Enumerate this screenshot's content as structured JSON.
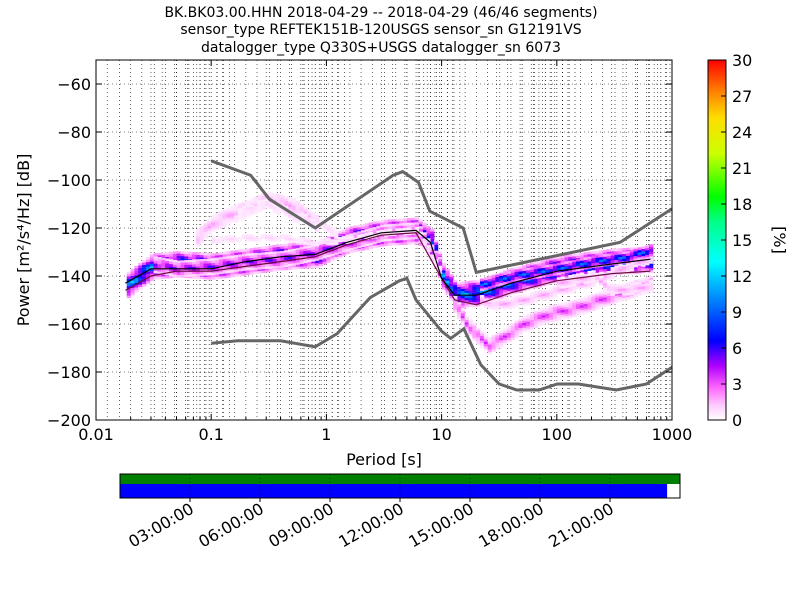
{
  "chart_data": {
    "type": "heatmap",
    "title_lines": [
      "BK.BK03.00.HHN   2018-04-29 -- 2018-04-29  (46/46 segments)",
      "sensor_type REFTEK151B-120USGS sensor_sn G12191VS",
      "datalogger_type Q330S+USGS datalogger_sn 6073"
    ],
    "xlabel": "Period [s]",
    "ylabel": "Power [m²/s⁴/Hz] [dB]",
    "xscale": "log",
    "xlim": [
      0.01,
      1000
    ],
    "ylim": [
      -200,
      -50
    ],
    "x_ticks": [
      {
        "value": 0.01,
        "label": "0.01"
      },
      {
        "value": 0.1,
        "label": "0.1"
      },
      {
        "value": 1,
        "label": "1"
      },
      {
        "value": 10,
        "label": "10"
      },
      {
        "value": 100,
        "label": "100"
      },
      {
        "value": 1000,
        "label": "1000"
      }
    ],
    "y_ticks": [
      {
        "value": -60,
        "label": "−60"
      },
      {
        "value": -80,
        "label": "−80"
      },
      {
        "value": -100,
        "label": "−100"
      },
      {
        "value": -120,
        "label": "−120"
      },
      {
        "value": -140,
        "label": "−140"
      },
      {
        "value": -160,
        "label": "−160"
      },
      {
        "value": -180,
        "label": "−180"
      },
      {
        "value": -200,
        "label": "−200"
      }
    ],
    "grid": "dotted vertical at period bins, dotted horizontal at y ticks",
    "colorbar": {
      "label": "[%]",
      "range": [
        0,
        30
      ],
      "ticks": [
        {
          "value": 0,
          "label": "0"
        },
        {
          "value": 3,
          "label": "3"
        },
        {
          "value": 6,
          "label": "6"
        },
        {
          "value": 9,
          "label": "9"
        },
        {
          "value": 12,
          "label": "12"
        },
        {
          "value": 15,
          "label": "15"
        },
        {
          "value": 18,
          "label": "18"
        },
        {
          "value": 21,
          "label": "21"
        },
        {
          "value": 24,
          "label": "24"
        },
        {
          "value": 27,
          "label": "27"
        },
        {
          "value": 30,
          "label": "30"
        }
      ],
      "colormap": "pqlx: white-magenta-purple-blue-cyan-green-yellow-orange-red"
    },
    "noise_models": {
      "high": [
        [
          0.1,
          -92
        ],
        [
          0.22,
          -98
        ],
        [
          0.32,
          -108
        ],
        [
          0.8,
          -120
        ],
        [
          3.8,
          -98
        ],
        [
          4.6,
          -96.5
        ],
        [
          6.3,
          -101
        ],
        [
          7.9,
          -113
        ],
        [
          15.4,
          -120
        ],
        [
          20,
          -138.5
        ],
        [
          354,
          -126
        ],
        [
          1000,
          -112
        ]
      ],
      "low": [
        [
          0.1,
          -168
        ],
        [
          0.17,
          -167
        ],
        [
          0.4,
          -167
        ],
        [
          0.8,
          -169.5
        ],
        [
          1.24,
          -164
        ],
        [
          2.4,
          -149
        ],
        [
          4.3,
          -142
        ],
        [
          5,
          -141
        ],
        [
          6,
          -150
        ],
        [
          10,
          -163
        ],
        [
          12,
          -166
        ],
        [
          15.6,
          -162
        ],
        [
          21.9,
          -177
        ],
        [
          31.6,
          -185
        ],
        [
          45,
          -187.5
        ],
        [
          70,
          -187.5
        ],
        [
          101,
          -185
        ],
        [
          154,
          -185
        ],
        [
          328,
          -187.5
        ],
        [
          600,
          -185
        ],
        [
          1000,
          -178
        ]
      ]
    },
    "density_bands": [
      {
        "x": [
          0.018,
          0.03,
          0.05,
          0.1,
          0.2,
          0.4,
          0.8,
          1.5,
          3,
          6,
          8,
          10,
          13,
          20,
          40,
          100,
          300,
          650
        ],
        "y": [
          -144,
          -136,
          -135,
          -136,
          -134,
          -132,
          -131,
          -125,
          -122,
          -121,
          -126,
          -140,
          -148,
          -147,
          -142,
          -137,
          -134,
          -133
        ],
        "half_width": 5,
        "percent": 12
      },
      {
        "x": [
          0.03,
          0.05,
          0.1,
          0.2,
          0.4,
          0.8,
          1.5,
          3,
          6,
          10
        ],
        "y": [
          -135,
          -137,
          -136,
          -134,
          -133,
          -130,
          -126,
          -122,
          -121,
          -138
        ],
        "half_width": 3,
        "percent": 6
      },
      {
        "x": [
          0.07,
          0.1,
          0.15,
          0.22,
          0.3,
          0.5,
          0.8
        ],
        "y": [
          -125,
          -118,
          -114,
          -111,
          -108,
          -111,
          -118
        ],
        "half_width": 4,
        "percent": 2
      },
      {
        "x": [
          0.15,
          0.2,
          0.3,
          0.5,
          0.8,
          1.2
        ],
        "y": [
          -116,
          -112,
          -110,
          -115,
          -118,
          -122
        ],
        "half_width": 3,
        "percent": 1
      },
      {
        "x": [
          0.1,
          0.2,
          0.4,
          0.8,
          1.5,
          3,
          6,
          10
        ],
        "y": [
          -125,
          -124,
          -124,
          -126,
          -125,
          -122,
          -121,
          -140
        ],
        "half_width": 2,
        "percent": 1
      },
      {
        "x": [
          12,
          16,
          20,
          25,
          32,
          50,
          80,
          150,
          300,
          650
        ],
        "y": [
          -150,
          -160,
          -165,
          -169,
          -166,
          -160,
          -156,
          -153,
          -148,
          -143
        ],
        "half_width": 3,
        "percent": 4
      },
      {
        "x": [
          20,
          30,
          50,
          100,
          200,
          400,
          650
        ],
        "y": [
          -150,
          -152,
          -150,
          -146,
          -142,
          -136,
          -132
        ],
        "half_width": 2,
        "percent": 2
      },
      {
        "x": [
          20,
          40,
          100,
          200,
          400,
          650
        ],
        "y": [
          -144,
          -140,
          -137,
          -134,
          -132,
          -129
        ],
        "half_width": 2,
        "percent": 10
      },
      {
        "x": [
          100,
          200,
          300,
          500,
          650
        ],
        "y": [
          -143,
          -140,
          -146,
          -145,
          -144
        ],
        "half_width": 2,
        "percent": 2
      }
    ],
    "mode_line": {
      "x": [
        0.018,
        0.03,
        0.05,
        0.1,
        0.2,
        0.4,
        0.8,
        1.5,
        3,
        6,
        8,
        10,
        13,
        20,
        40,
        100,
        300,
        650
      ],
      "y": [
        -143,
        -137,
        -137,
        -137,
        -134,
        -132,
        -131,
        -126,
        -122,
        -121,
        -126,
        -141,
        -148,
        -148,
        -143,
        -138,
        -135,
        -133
      ],
      "color": "#000000"
    },
    "lower_line": {
      "x": [
        0.018,
        0.03,
        0.05,
        0.1,
        0.2,
        0.4,
        0.8,
        1.5,
        3,
        6,
        10,
        13,
        20,
        40,
        100,
        300,
        650
      ],
      "y": [
        -146,
        -140,
        -138,
        -138,
        -136,
        -134,
        -132,
        -127,
        -123,
        -122,
        -141,
        -150,
        -152,
        -147,
        -142,
        -139,
        -138
      ],
      "color": "#6a0d3a"
    },
    "timeline": {
      "coverage_color": "#0000ff",
      "segments_color": "#008000",
      "coverage_fraction": 0.977,
      "ticks": [
        {
          "hour": 3,
          "label": "03:00:00"
        },
        {
          "hour": 6,
          "label": "06:00:00"
        },
        {
          "hour": 9,
          "label": "09:00:00"
        },
        {
          "hour": 12,
          "label": "12:00:00"
        },
        {
          "hour": 15,
          "label": "15:00:00"
        },
        {
          "hour": 18,
          "label": "18:00:00"
        },
        {
          "hour": 21,
          "label": "21:00:00"
        }
      ]
    }
  }
}
